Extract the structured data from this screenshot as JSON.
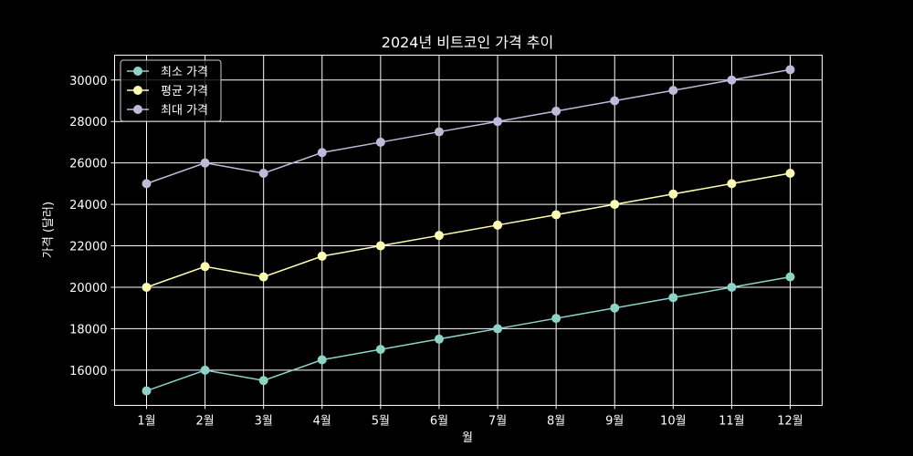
{
  "chart_data": {
    "type": "line",
    "title": "2024년 비트코인 가격 추이",
    "xlabel": "월",
    "ylabel": "가격 (달러)",
    "categories": [
      "1월",
      "2월",
      "3월",
      "4월",
      "5월",
      "6월",
      "7월",
      "8월",
      "9월",
      "10월",
      "11월",
      "12월"
    ],
    "yticks": [
      16000,
      18000,
      20000,
      22000,
      24000,
      26000,
      28000,
      30000
    ],
    "ylim": [
      14300,
      31200
    ],
    "grid": true,
    "legend_position": "top-left",
    "background": "#000000",
    "series": [
      {
        "name": "최소 가격",
        "color": "#8dd3c7",
        "values": [
          15000,
          16000,
          15500,
          16500,
          17000,
          17500,
          18000,
          18500,
          19000,
          19500,
          20000,
          20500
        ]
      },
      {
        "name": "평균 가격",
        "color": "#ffffb3",
        "values": [
          20000,
          21000,
          20500,
          21500,
          22000,
          22500,
          23000,
          23500,
          24000,
          24500,
          25000,
          25500
        ]
      },
      {
        "name": "최대 가격",
        "color": "#bebada",
        "values": [
          25000,
          26000,
          25500,
          26500,
          27000,
          27500,
          28000,
          28500,
          29000,
          29500,
          30000,
          30500
        ]
      }
    ]
  }
}
